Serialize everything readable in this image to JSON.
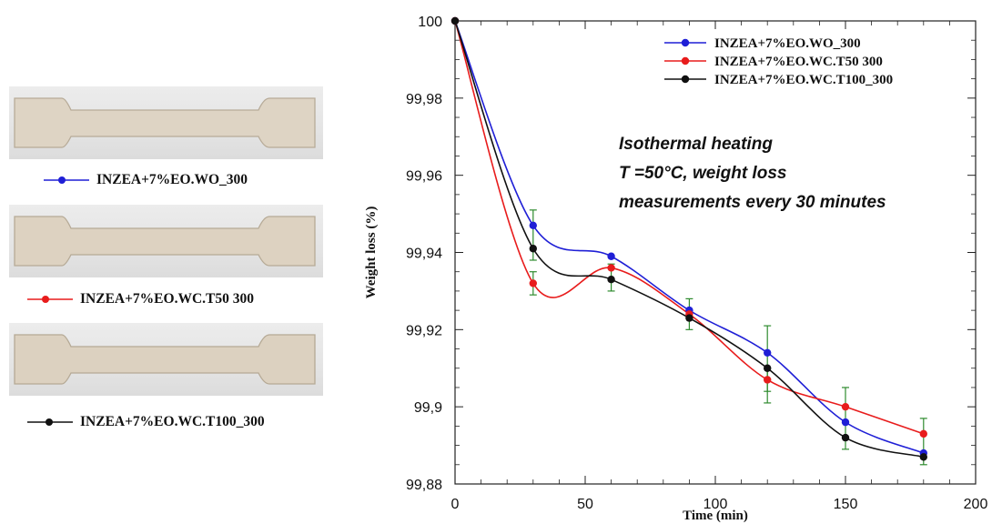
{
  "specimens": [
    {
      "legend_label": "INZEA+7%EO.WO_300",
      "color": "#1f1fd6"
    },
    {
      "legend_label": "INZEA+7%EO.WC.T50  300",
      "color": "#e81c1c"
    },
    {
      "legend_label": "INZEA+7%EO.WC.T100_300",
      "color": "#111111"
    }
  ],
  "chart_data": {
    "type": "line",
    "xlabel": "Time (min)",
    "ylabel": "Weight loss (%)",
    "xlim": [
      0,
      200
    ],
    "ylim": [
      99.88,
      100
    ],
    "x_ticks": [
      0,
      50,
      100,
      150,
      200
    ],
    "x_tick_labels": [
      "0",
      "50",
      "100",
      "150",
      "200"
    ],
    "y_ticks": [
      99.88,
      99.9,
      99.92,
      99.94,
      99.96,
      99.98,
      100
    ],
    "y_tick_labels": [
      "99,88",
      "99,9",
      "99,92",
      "99,94",
      "99,96",
      "99,98",
      "100"
    ],
    "grid": false,
    "legend_position": "top-right",
    "annotation": [
      "Isothermal heating",
      "T =50°C, weight loss",
      "measurements every 30 minutes"
    ],
    "x": [
      0,
      30,
      60,
      90,
      120,
      150,
      180
    ],
    "series": [
      {
        "name": "INZEA+7%EO.WO_300",
        "color": "#1f1fd6",
        "values": [
          100,
          99.947,
          99.939,
          99.925,
          99.914,
          99.896,
          99.888
        ]
      },
      {
        "name": "INZEA+7%EO.WC.T50  300",
        "color": "#e81c1c",
        "values": [
          100,
          99.932,
          99.936,
          99.924,
          99.907,
          99.9,
          99.893
        ]
      },
      {
        "name": "INZEA+7%EO.WC.T100_300",
        "color": "#111111",
        "values": [
          100,
          99.941,
          99.933,
          99.923,
          99.91,
          99.892,
          99.887
        ]
      }
    ],
    "error_bars": [
      {
        "x": 30,
        "low": 99.938,
        "high": 99.951
      },
      {
        "x": 30,
        "low": 99.929,
        "high": 99.935
      },
      {
        "x": 60,
        "low": 99.93,
        "high": 99.937
      },
      {
        "x": 90,
        "low": 99.92,
        "high": 99.928
      },
      {
        "x": 120,
        "low": 99.904,
        "high": 99.921
      },
      {
        "x": 120,
        "low": 99.901,
        "high": 99.91
      },
      {
        "x": 150,
        "low": 99.889,
        "high": 99.905
      },
      {
        "x": 180,
        "low": 99.885,
        "high": 99.897
      }
    ],
    "error_bar_color": "#2e8b2e"
  }
}
